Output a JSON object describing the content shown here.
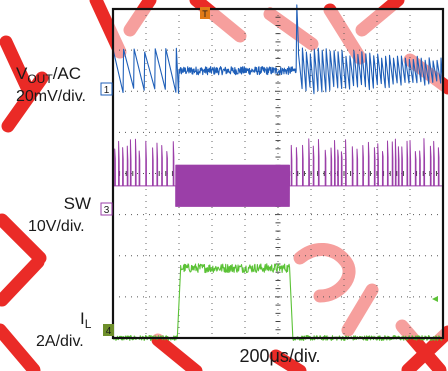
{
  "chart_data": {
    "type": "oscilloscope",
    "grid": true,
    "divisions": {
      "x": 10,
      "y": 8
    },
    "xlabel": "200μs/div.",
    "trigger_marker": "T",
    "channels": [
      {
        "id": "1",
        "name_main": "V",
        "name_sub": "OUT",
        "name_suffix": "/AC",
        "scale": "20mV/div.",
        "color": "#1f5fb8",
        "baseline_div": 6.5,
        "segments": [
          {
            "t": [
              0.0,
              2.0
            ],
            "shape": "sawtooth",
            "period_div": 0.32,
            "amp_div": 1.0
          },
          {
            "t": [
              2.0,
              5.55
            ],
            "shape": "noise",
            "amp_div": 0.2
          },
          {
            "t": [
              5.55,
              5.62
            ],
            "shape": "spike",
            "amp_div": 1.6
          },
          {
            "t": [
              5.62,
              10.0
            ],
            "shape": "decaying-sawtooth",
            "period_div": 0.12,
            "amp_div": 0.9
          }
        ]
      },
      {
        "id": "3",
        "name_main": "SW",
        "scale": "10V/div.",
        "color": "#9b3fa8",
        "baseline_div": 3.7,
        "segments": [
          {
            "t": [
              0.0,
              1.9
            ],
            "shape": "sparse-pulses",
            "amp_div": 1.1
          },
          {
            "t": [
              1.9,
              5.35
            ],
            "shape": "dense-switching",
            "amp_div": 1.0
          },
          {
            "t": [
              5.35,
              10.0
            ],
            "shape": "sparse-pulses",
            "amp_div": 1.1
          }
        ]
      },
      {
        "id": "4",
        "name_main": "I",
        "name_sub": "L",
        "scale": "2A/div.",
        "color": "#5bc236",
        "baseline_div": 0.0,
        "segments": [
          {
            "t": [
              0.0,
              1.95
            ],
            "shape": "level",
            "level_div": 0.0
          },
          {
            "t": [
              1.95,
              2.05
            ],
            "shape": "rise",
            "level_div": 1.7
          },
          {
            "t": [
              2.05,
              5.35
            ],
            "shape": "level",
            "level_div": 1.7
          },
          {
            "t": [
              5.35,
              5.45
            ],
            "shape": "fall",
            "level_div": 0.0
          },
          {
            "t": [
              5.45,
              10.0
            ],
            "shape": "level",
            "level_div": 0.0
          }
        ]
      }
    ]
  },
  "colors": {
    "watermark": "#e8140f",
    "grid": "#555555",
    "frame": "#111111"
  }
}
